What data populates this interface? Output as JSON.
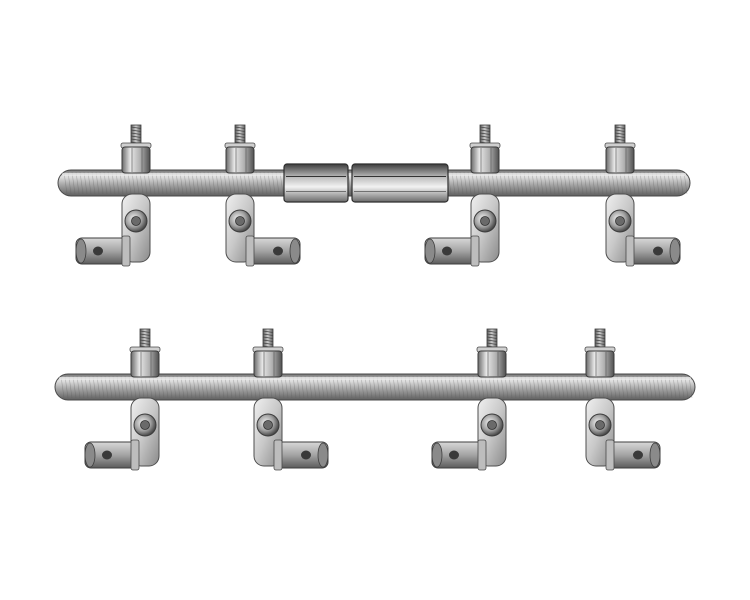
{
  "image": {
    "background_color": "#ffffff",
    "objects": [
      {
        "kind": "fixator-assembly-with-connector",
        "clamp_count": 4,
        "connector_segments": 2
      },
      {
        "kind": "fixator-assembly-single-rod",
        "clamp_count": 4,
        "connector_segments": 0
      }
    ],
    "colors": {
      "rod": "#a9a9a9",
      "rod_highlight": "#e2e2e2",
      "rod_shadow": "#5e5e5e",
      "metal_light": "#dcdcdc",
      "metal_mid": "#9c9c9c",
      "metal_dark": "#4a4a4a",
      "hole": "#3a3a3a"
    }
  }
}
